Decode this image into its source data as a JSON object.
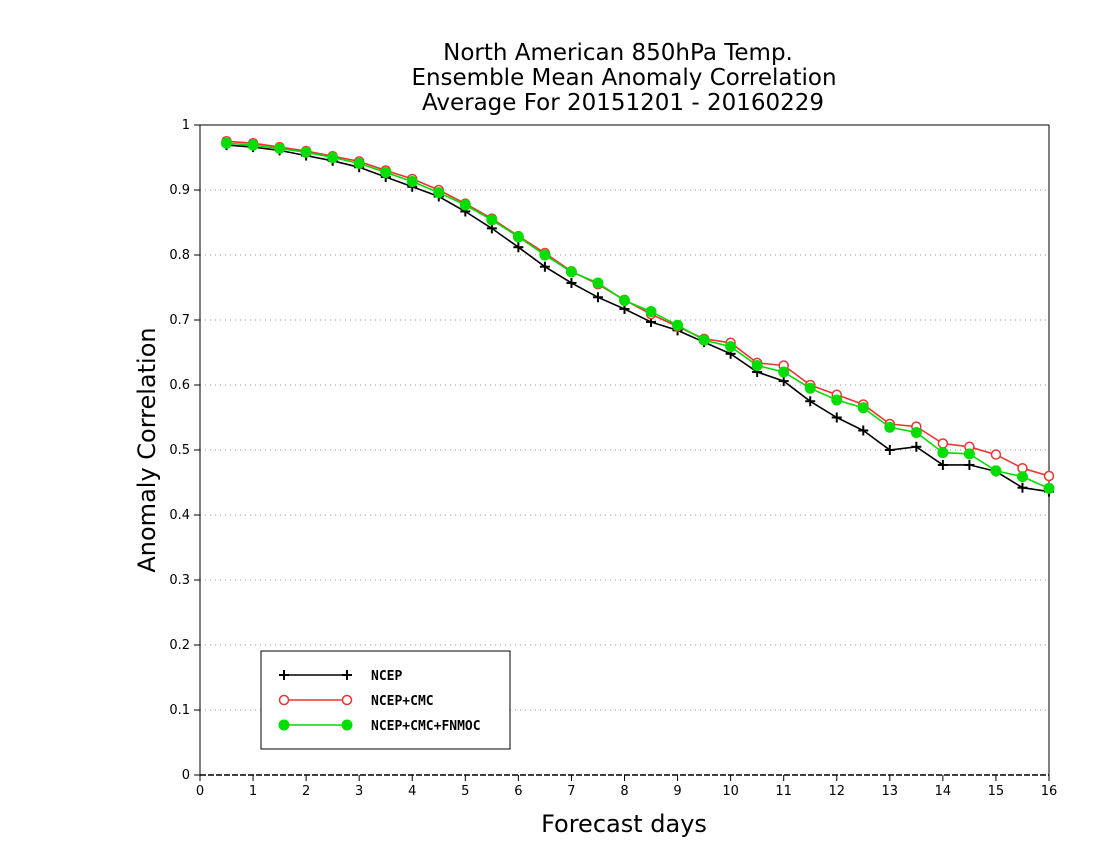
{
  "chart_data": {
    "type": "line",
    "title": [
      "North American 850hPa Temp.",
      "Ensemble Mean Anomaly Correlation",
      "Average For 20151201 - 20160229"
    ],
    "xlabel": "Forecast days",
    "ylabel": "Anomaly Correlation",
    "xlim": [
      0,
      16
    ],
    "ylim": [
      0,
      1
    ],
    "xticks": [
      "0",
      "1",
      "2",
      "3",
      "4",
      "5",
      "6",
      "7",
      "8",
      "9",
      "10",
      "11",
      "12",
      "13",
      "14",
      "15",
      "16"
    ],
    "yticks": [
      "0",
      "0.1",
      "0.2",
      "0.3",
      "0.4",
      "0.5",
      "0.6",
      "0.7",
      "0.8",
      "0.9",
      "1"
    ],
    "grid": true,
    "legend_position": "bottom-left",
    "x": [
      0.5,
      1,
      1.5,
      2,
      2.5,
      3,
      3.5,
      4,
      4.5,
      5,
      5.5,
      6,
      6.5,
      7,
      7.5,
      8,
      8.5,
      9,
      9.5,
      10,
      10.5,
      11,
      11.5,
      12,
      12.5,
      13,
      13.5,
      14,
      14.5,
      15,
      15.5,
      16
    ],
    "series": [
      {
        "name": "NCEP",
        "color": "#000000",
        "marker": "plus",
        "values": [
          0.969,
          0.966,
          0.961,
          0.953,
          0.945,
          0.935,
          0.92,
          0.905,
          0.89,
          0.867,
          0.841,
          0.812,
          0.782,
          0.757,
          0.735,
          0.717,
          0.697,
          0.684,
          0.666,
          0.648,
          0.62,
          0.606,
          0.575,
          0.55,
          0.53,
          0.5,
          0.505,
          0.477,
          0.477,
          0.467,
          0.442,
          0.436
        ]
      },
      {
        "name": "NCEP+CMC",
        "color": "#ee3333",
        "marker": "open-circle",
        "values": [
          0.975,
          0.972,
          0.966,
          0.96,
          0.952,
          0.944,
          0.93,
          0.917,
          0.9,
          0.879,
          0.856,
          0.829,
          0.803,
          0.775,
          0.755,
          0.731,
          0.709,
          0.69,
          0.671,
          0.665,
          0.634,
          0.63,
          0.6,
          0.585,
          0.57,
          0.54,
          0.536,
          0.51,
          0.505,
          0.493,
          0.472,
          0.46
        ]
      },
      {
        "name": "NCEP+CMC+FNMOC",
        "color": "#00dd00",
        "marker": "filled-circle",
        "values": [
          0.972,
          0.969,
          0.964,
          0.958,
          0.95,
          0.941,
          0.927,
          0.913,
          0.896,
          0.877,
          0.854,
          0.828,
          0.8,
          0.774,
          0.757,
          0.73,
          0.713,
          0.692,
          0.669,
          0.659,
          0.63,
          0.62,
          0.595,
          0.577,
          0.565,
          0.535,
          0.527,
          0.496,
          0.494,
          0.468,
          0.459,
          0.441
        ]
      }
    ]
  }
}
